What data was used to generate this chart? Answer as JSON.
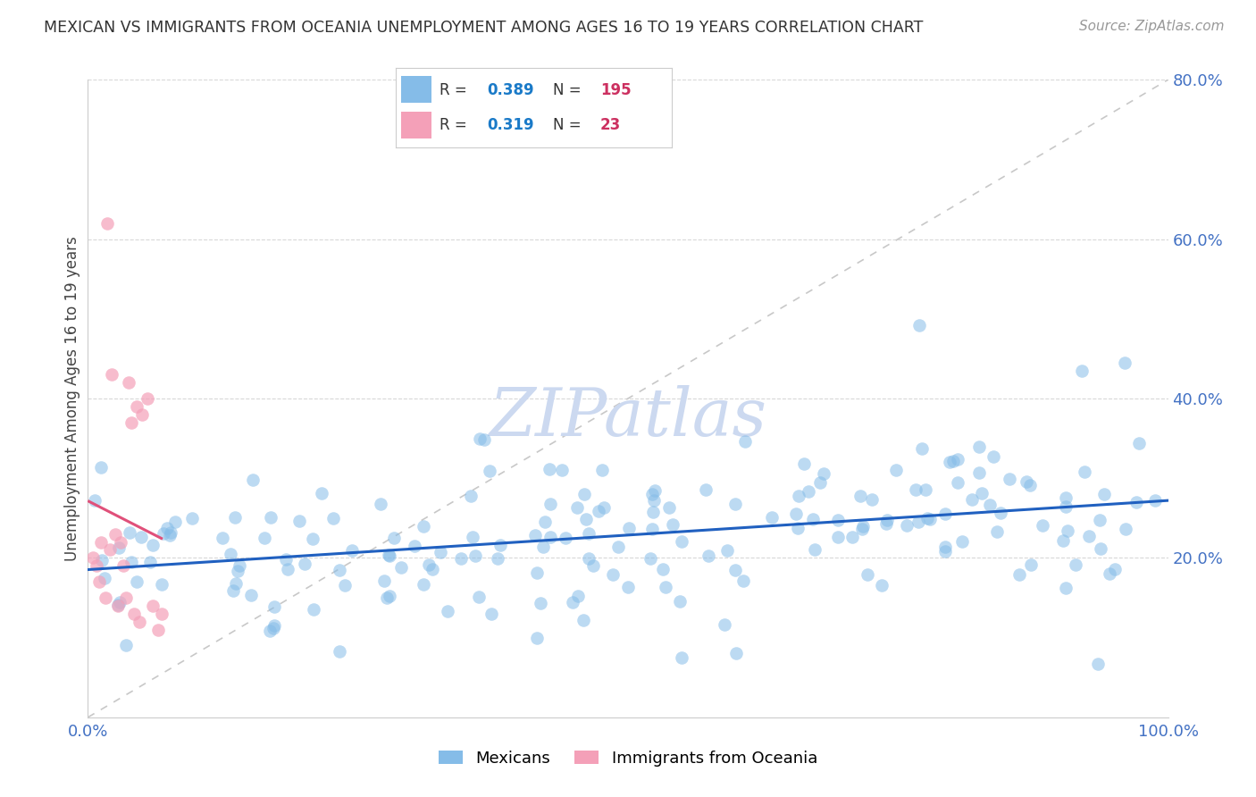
{
  "title": "MEXICAN VS IMMIGRANTS FROM OCEANIA UNEMPLOYMENT AMONG AGES 16 TO 19 YEARS CORRELATION CHART",
  "source": "Source: ZipAtlas.com",
  "ylabel_label": "Unemployment Among Ages 16 to 19 years",
  "xlim": [
    0.0,
    1.0
  ],
  "ylim": [
    0.0,
    0.8
  ],
  "yticks": [
    0.2,
    0.4,
    0.6,
    0.8
  ],
  "ytick_labels": [
    "20.0%",
    "40.0%",
    "60.0%",
    "80.0%"
  ],
  "mexican_R": 0.389,
  "mexican_N": 195,
  "oceania_R": 0.319,
  "oceania_N": 23,
  "mexican_color": "#85bce8",
  "oceania_color": "#f4a0b8",
  "mexican_line_color": "#2060c0",
  "oceania_line_color": "#e0507a",
  "diag_line_color": "#c8c8c8",
  "watermark": "ZIPatlas",
  "watermark_color": "#ccd9f0",
  "legend_R_color": "#1a7ac8",
  "legend_N_color": "#cc3060",
  "mexicans_label": "Mexicans",
  "oceania_label": "Immigrants from Oceania",
  "grid_color": "#d8d8d8",
  "spine_color": "#cccccc",
  "tick_color": "#4472c4",
  "title_color": "#333333",
  "source_color": "#999999",
  "ylabel_color": "#444444"
}
